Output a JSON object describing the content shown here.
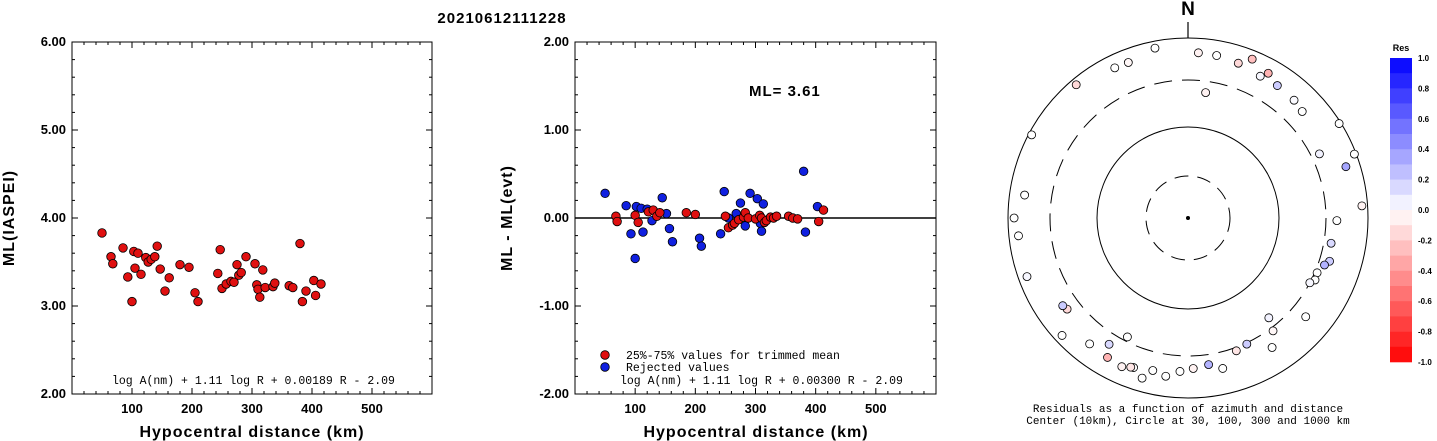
{
  "page": {
    "title": "20210612111228"
  },
  "chart_data": [
    {
      "type": "scatter",
      "id": "magnitude_vs_distance",
      "xlabel": "Hypocentral distance (km)",
      "ylabel": "ML(IASPEI)",
      "xlim": [
        0,
        600
      ],
      "ylim": [
        2.0,
        6.0
      ],
      "x_ticks": [
        "100",
        "200",
        "300",
        "400",
        "500"
      ],
      "y_ticks": [
        "2.00",
        "3.00",
        "4.00",
        "5.00",
        "6.00"
      ],
      "formula": "log A(nm) + 1.11 log R + 0.00189 R - 2.09",
      "point_color": "#e01010",
      "points": [
        [
          50,
          3.83
        ],
        [
          65,
          3.56
        ],
        [
          68,
          3.48
        ],
        [
          85,
          3.66
        ],
        [
          93,
          3.33
        ],
        [
          100,
          3.05
        ],
        [
          103,
          3.62
        ],
        [
          105,
          3.43
        ],
        [
          110,
          3.6
        ],
        [
          115,
          3.36
        ],
        [
          123,
          3.55
        ],
        [
          127,
          3.5
        ],
        [
          132,
          3.53
        ],
        [
          138,
          3.56
        ],
        [
          142,
          3.68
        ],
        [
          147,
          3.42
        ],
        [
          155,
          3.17
        ],
        [
          162,
          3.32
        ],
        [
          180,
          3.47
        ],
        [
          195,
          3.44
        ],
        [
          205,
          3.15
        ],
        [
          210,
          3.05
        ],
        [
          243,
          3.37
        ],
        [
          247,
          3.64
        ],
        [
          250,
          3.2
        ],
        [
          257,
          3.25
        ],
        [
          265,
          3.28
        ],
        [
          270,
          3.27
        ],
        [
          275,
          3.47
        ],
        [
          278,
          3.35
        ],
        [
          282,
          3.38
        ],
        [
          290,
          3.56
        ],
        [
          305,
          3.48
        ],
        [
          308,
          3.24
        ],
        [
          310,
          3.19
        ],
        [
          313,
          3.1
        ],
        [
          318,
          3.41
        ],
        [
          322,
          3.21
        ],
        [
          335,
          3.22
        ],
        [
          338,
          3.26
        ],
        [
          362,
          3.23
        ],
        [
          368,
          3.21
        ],
        [
          380,
          3.71
        ],
        [
          384,
          3.05
        ],
        [
          390,
          3.17
        ],
        [
          403,
          3.29
        ],
        [
          406,
          3.12
        ],
        [
          415,
          3.25
        ]
      ]
    },
    {
      "type": "scatter",
      "id": "residual_vs_distance",
      "xlabel": "Hypocentral distance (km)",
      "ylabel": "ML - ML(evt)",
      "xlim": [
        0,
        600
      ],
      "ylim": [
        -2.0,
        2.0
      ],
      "x_ticks": [
        "100",
        "200",
        "300",
        "400",
        "500"
      ],
      "y_ticks": [
        "-2.00",
        "-1.00",
        "0.00",
        "1.00",
        "2.00"
      ],
      "annotation": "ML= 3.61",
      "formula": "log A(nm) + 1.11 log R + 0.00300 R - 2.09",
      "legend": [
        {
          "label": "25%-75% values for trimmed mean",
          "color": "#e01010"
        },
        {
          "label": "Rejected values",
          "color": "#1020e0"
        }
      ],
      "trimmed": [
        [
          68,
          0.02
        ],
        [
          70,
          -0.04
        ],
        [
          100,
          0.03
        ],
        [
          105,
          -0.05
        ],
        [
          122,
          0.07
        ],
        [
          130,
          0.09
        ],
        [
          136,
          0.02
        ],
        [
          141,
          0.06
        ],
        [
          185,
          0.06
        ],
        [
          200,
          0.04
        ],
        [
          250,
          0.02
        ],
        [
          255,
          -0.11
        ],
        [
          262,
          -0.08
        ],
        [
          265,
          -0.06
        ],
        [
          272,
          -0.02
        ],
        [
          280,
          0.01
        ],
        [
          283,
          0.06
        ],
        [
          288,
          0.0
        ],
        [
          300,
          -0.01
        ],
        [
          307,
          0.03
        ],
        [
          310,
          0.0
        ],
        [
          315,
          -0.05
        ],
        [
          318,
          -0.03
        ],
        [
          325,
          0.01
        ],
        [
          330,
          0.0
        ],
        [
          335,
          0.02
        ],
        [
          355,
          0.02
        ],
        [
          362,
          0.0
        ],
        [
          370,
          -0.01
        ],
        [
          405,
          -0.04
        ],
        [
          413,
          0.09
        ]
      ],
      "rejected": [
        [
          50,
          0.28
        ],
        [
          85,
          0.14
        ],
        [
          93,
          -0.18
        ],
        [
          100,
          -0.46
        ],
        [
          102,
          0.13
        ],
        [
          110,
          0.11
        ],
        [
          113,
          -0.16
        ],
        [
          120,
          0.1
        ],
        [
          128,
          -0.03
        ],
        [
          145,
          0.23
        ],
        [
          152,
          0.05
        ],
        [
          157,
          -0.12
        ],
        [
          162,
          -0.27
        ],
        [
          207,
          -0.23
        ],
        [
          210,
          -0.32
        ],
        [
          242,
          -0.18
        ],
        [
          248,
          0.3
        ],
        [
          255,
          0.0
        ],
        [
          268,
          0.05
        ],
        [
          275,
          0.17
        ],
        [
          283,
          -0.09
        ],
        [
          291,
          0.28
        ],
        [
          303,
          0.22
        ],
        [
          308,
          -0.06
        ],
        [
          310,
          -0.15
        ],
        [
          313,
          0.16
        ],
        [
          380,
          0.53
        ],
        [
          383,
          -0.16
        ],
        [
          403,
          0.13
        ]
      ]
    },
    {
      "type": "polar_scatter",
      "id": "azimuth_residuals",
      "north_label": "N",
      "caption_line1": "Residuals as a function of azimuth and distance",
      "caption_line2": "Center (10km), Circle at 30, 100, 300 and 1000 km",
      "colorbar_title": "Res",
      "colorbar_ticks": [
        "1.0",
        "0.8",
        "0.6",
        "0.4",
        "0.2",
        "0.0",
        "-0.2",
        "-0.4",
        "-0.6",
        "-0.8",
        "-1.0"
      ],
      "stations": [
        [
          3.6,
          660,
          -0.05
        ],
        [
          8,
          230,
          -0.05
        ],
        [
          10,
          650,
          0.0
        ],
        [
          18,
          610,
          -0.15
        ],
        [
          22,
          780,
          -0.25
        ],
        [
          27,
          550,
          0.03
        ],
        [
          29,
          660,
          -0.3
        ],
        [
          34,
          560,
          0.2
        ],
        [
          42,
          540,
          0.02
        ],
        [
          47,
          505,
          0.0
        ],
        [
          58,
          950,
          0.0
        ],
        [
          64,
          380,
          0.05
        ],
        [
          69,
          950,
          0.0
        ],
        [
          72,
          670,
          0.35
        ],
        [
          86,
          850,
          -0.05
        ],
        [
          91,
          410,
          0.0
        ],
        [
          100,
          370,
          0.15
        ],
        [
          107,
          400,
          0.2
        ],
        [
          109,
          360,
          0.3
        ],
        [
          113,
          320,
          0.0
        ],
        [
          116,
          330,
          0.0
        ],
        [
          118,
          300,
          0.03
        ],
        [
          130,
          470,
          0.0
        ],
        [
          141,
          240,
          0.05
        ],
        [
          143,
          330,
          -0.03
        ],
        [
          147,
          480,
          0.0
        ],
        [
          155,
          310,
          0.2
        ],
        [
          160,
          330,
          -0.1
        ],
        [
          167,
          480,
          0.0
        ],
        [
          172,
          400,
          0.3
        ],
        [
          178,
          430,
          -0.05
        ],
        [
          183,
          470,
          0.0
        ],
        [
          188,
          560,
          0.0
        ],
        [
          193,
          510,
          0.0
        ],
        [
          196,
          680,
          0.0
        ],
        [
          200,
          550,
          0.0
        ],
        [
          201,
          560,
          -0.1
        ],
        [
          204,
          610,
          -0.05
        ],
        [
          207,
          270,
          0.0
        ],
        [
          210,
          580,
          -0.3
        ],
        [
          212,
          410,
          0.15
        ],
        [
          218,
          560,
          0.0
        ],
        [
          227,
          800,
          0.0
        ],
        [
          233,
          440,
          -0.15
        ],
        [
          235,
          460,
          0.2
        ],
        [
          250,
          780,
          0.03
        ],
        [
          264,
          760,
          0.0
        ],
        [
          270,
          840,
          0.0
        ],
        [
          278,
          650,
          0.0
        ],
        [
          298,
          920,
          0.0
        ],
        [
          320,
          840,
          -0.15
        ],
        [
          334,
          690,
          0.0
        ],
        [
          339,
          680,
          -0.03
        ],
        [
          349,
          820,
          0.0
        ]
      ]
    }
  ]
}
